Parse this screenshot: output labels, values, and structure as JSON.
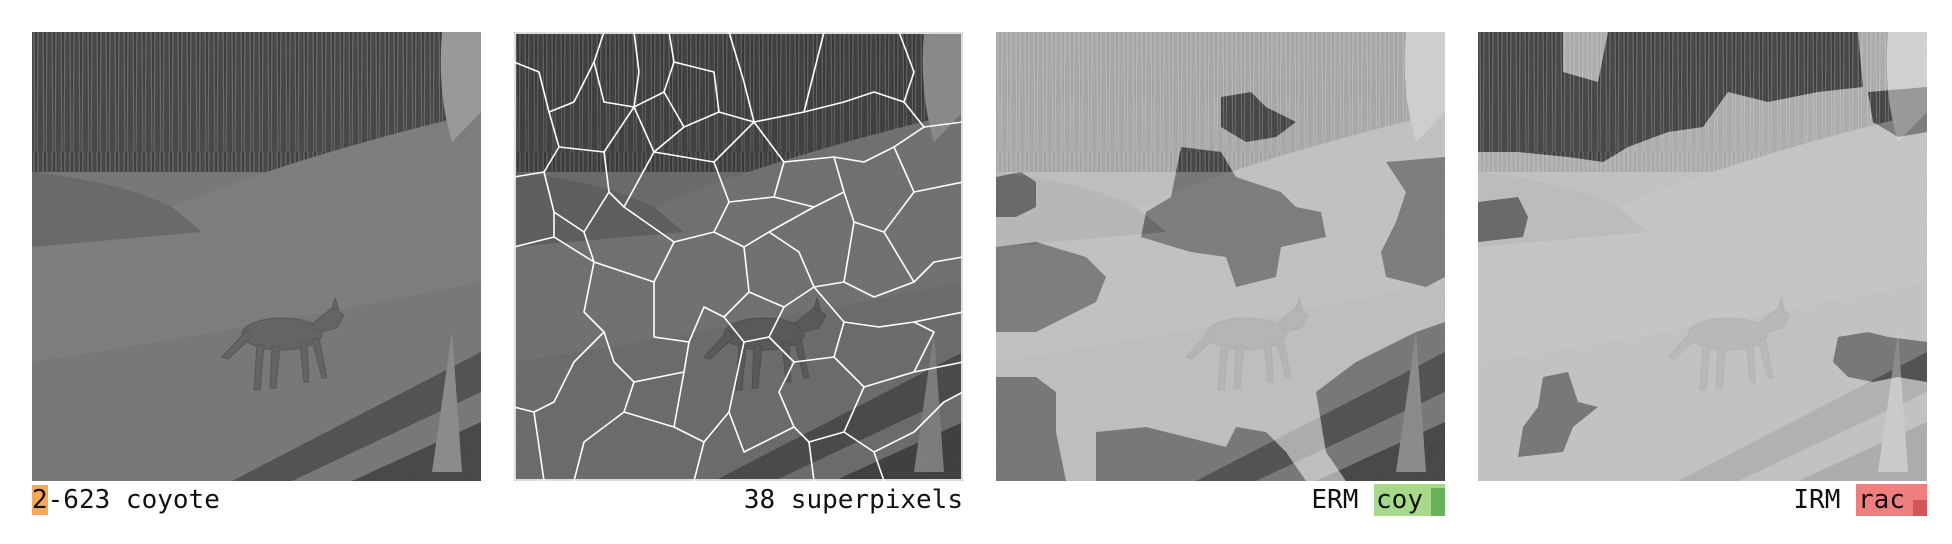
{
  "panels": [
    {
      "id": "original",
      "caption_index": "2",
      "caption_rest": "-623 coyote"
    },
    {
      "id": "superpixels",
      "caption": "38 superpixels"
    },
    {
      "id": "erm",
      "method": "ERM",
      "prediction": "coy",
      "prediction_color": "#a6d98c",
      "confidence": 0.88
    },
    {
      "id": "irm",
      "method": "IRM",
      "prediction": "rac",
      "prediction_color": "#ef7f7f",
      "confidence": 0.5
    }
  ],
  "colors": {
    "index_highlight": "#f7a95a",
    "erm_highlight": "#a6d98c",
    "irm_highlight": "#ef7f7f"
  }
}
